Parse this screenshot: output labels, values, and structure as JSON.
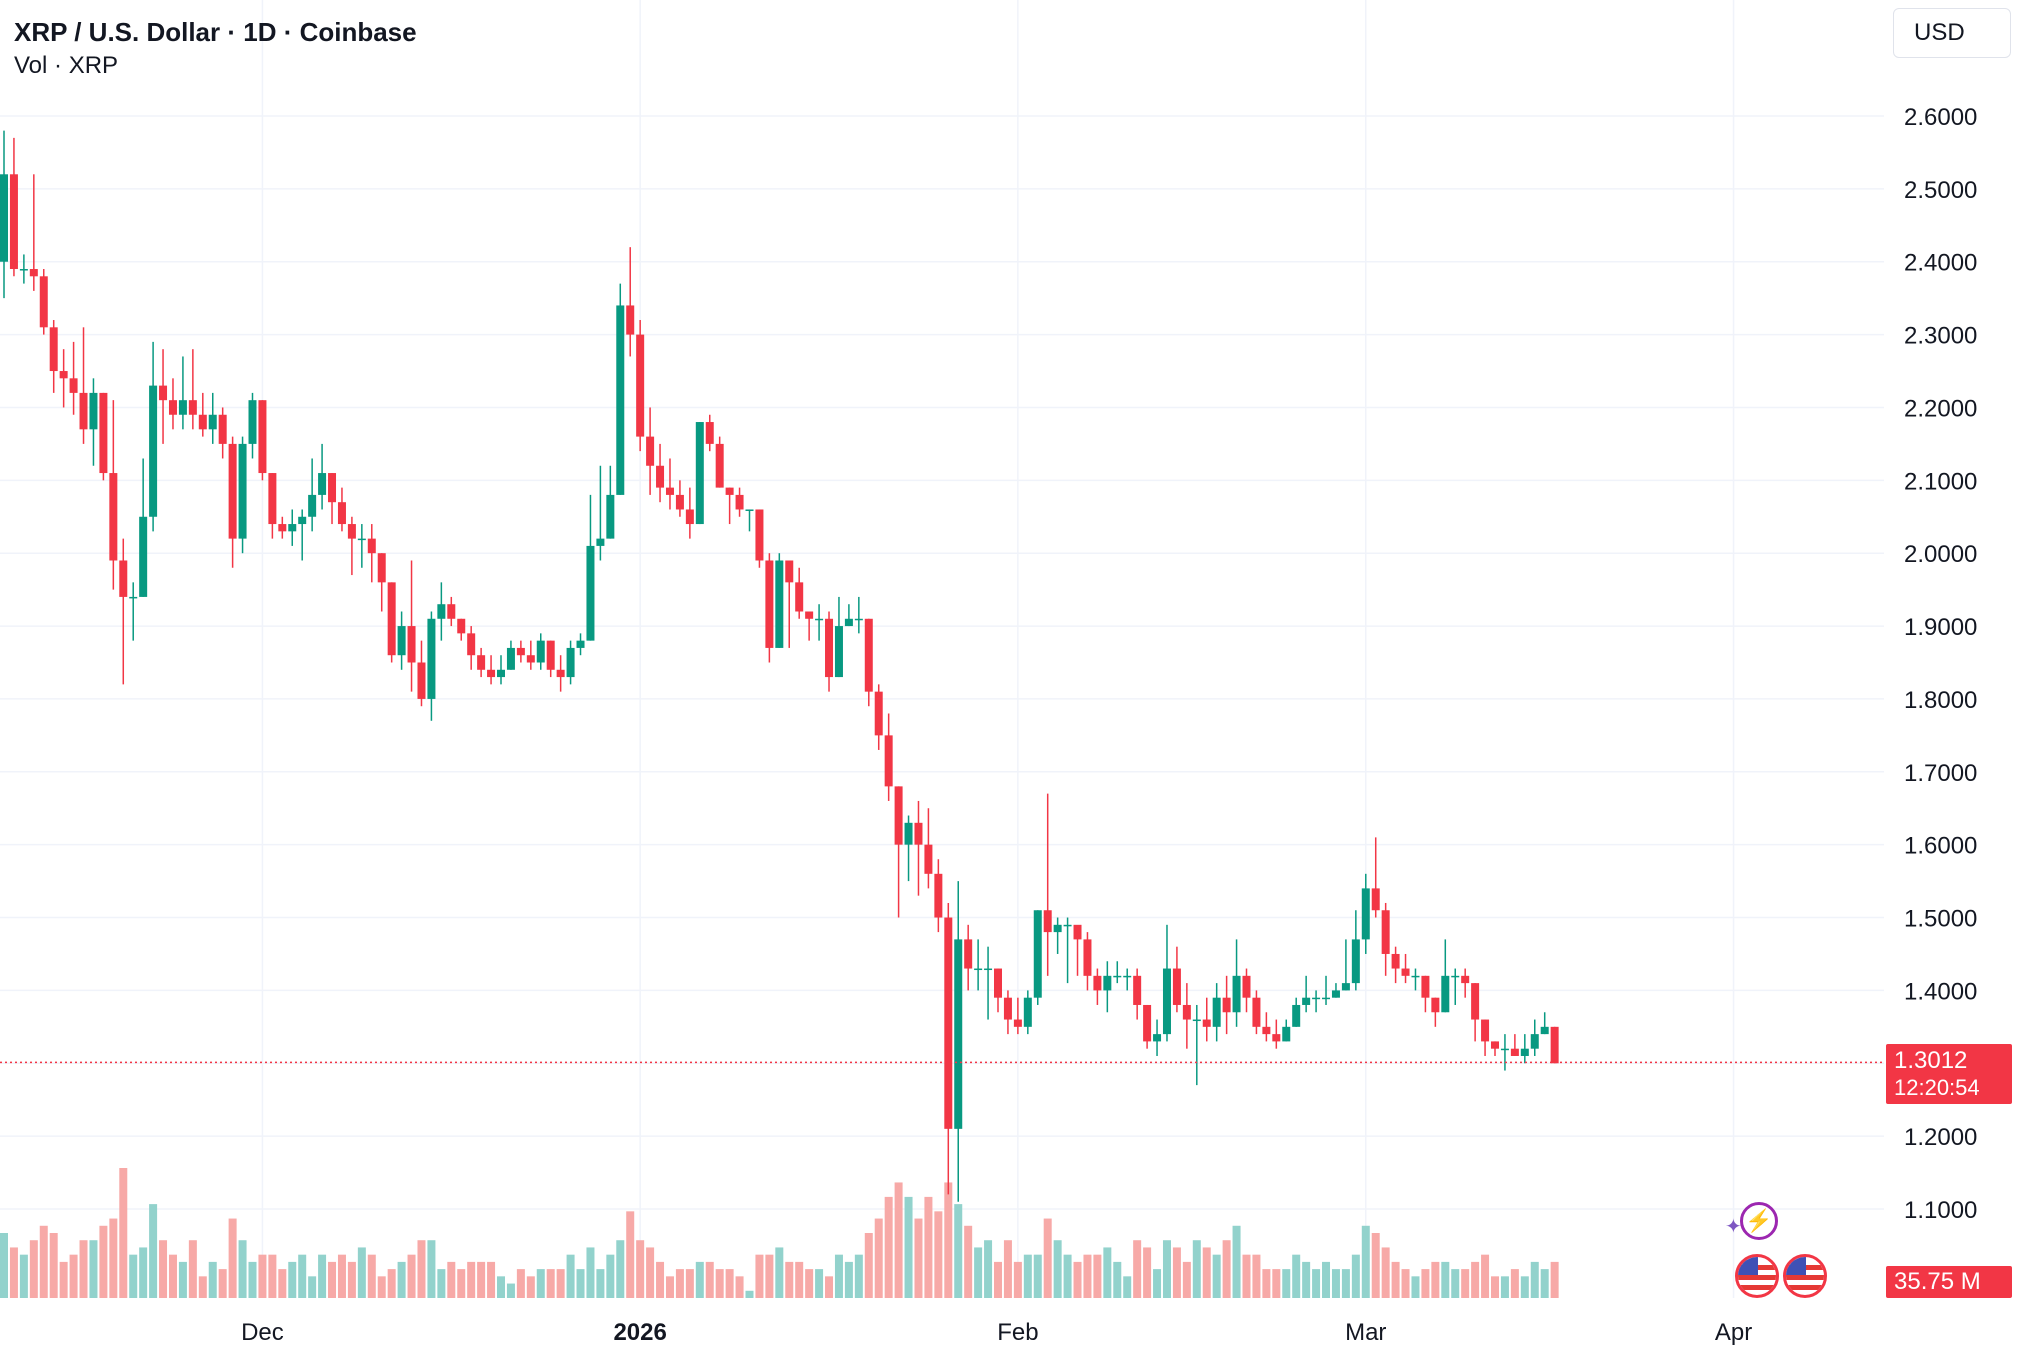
{
  "header": {
    "title": "XRP / U.S. Dollar · 1D · Coinbase",
    "volume_label": "Vol · XRP",
    "currency": "USD"
  },
  "price_label": {
    "price": "1.3012",
    "countdown": "12:20:54"
  },
  "volume_label": {
    "value": "35.75 M"
  },
  "colors": {
    "up": "#089981",
    "down": "#f23645",
    "up_volume": "#92d2cc",
    "down_volume": "#f7a9a7",
    "grid": "#f0f3fa"
  },
  "events": {
    "bolt_icon": "lightning-icon",
    "flag_icon": "us-flag-icon"
  },
  "chart_data": {
    "type": "candlestick",
    "x_ticks": [
      {
        "label": "Dec",
        "day": 26,
        "year": false
      },
      {
        "label": "2026",
        "day": 64,
        "year": true
      },
      {
        "label": "Feb",
        "day": 102,
        "year": false
      },
      {
        "label": "Mar",
        "day": 137,
        "year": false
      },
      {
        "label": "Apr",
        "day": 174,
        "year": false
      }
    ],
    "y_ticks": [
      "2.6000",
      "2.5000",
      "2.4000",
      "2.3000",
      "2.2000",
      "2.1000",
      "2.0000",
      "1.9000",
      "1.8000",
      "1.7000",
      "1.6000",
      "1.5000",
      "1.4000",
      "1.3000",
      "1.2000",
      "1.1000"
    ],
    "ylim": [
      1.05,
      2.72
    ],
    "current_price": 1.3012,
    "candles": [
      [
        2.4,
        2.52,
        2.58,
        2.35,
        0.9
      ],
      [
        2.52,
        2.39,
        2.57,
        2.38,
        0.7
      ],
      [
        2.39,
        2.39,
        2.41,
        2.37,
        0.6
      ],
      [
        2.39,
        2.38,
        2.52,
        2.36,
        0.8
      ],
      [
        2.38,
        2.31,
        2.39,
        2.3,
        1.0
      ],
      [
        2.31,
        2.25,
        2.32,
        2.22,
        0.9
      ],
      [
        2.25,
        2.24,
        2.28,
        2.2,
        0.5
      ],
      [
        2.24,
        2.22,
        2.29,
        2.19,
        0.6
      ],
      [
        2.22,
        2.17,
        2.31,
        2.15,
        0.8
      ],
      [
        2.17,
        2.22,
        2.24,
        2.12,
        0.8
      ],
      [
        2.22,
        2.11,
        2.22,
        2.1,
        1.0
      ],
      [
        2.11,
        1.99,
        2.21,
        1.95,
        1.1
      ],
      [
        1.99,
        1.94,
        2.02,
        1.82,
        1.8
      ],
      [
        1.94,
        1.94,
        1.96,
        1.88,
        0.6
      ],
      [
        1.94,
        2.05,
        2.13,
        1.94,
        0.7
      ],
      [
        2.05,
        2.23,
        2.29,
        2.03,
        1.3
      ],
      [
        2.23,
        2.21,
        2.28,
        2.15,
        0.8
      ],
      [
        2.21,
        2.19,
        2.24,
        2.17,
        0.6
      ],
      [
        2.19,
        2.21,
        2.27,
        2.17,
        0.5
      ],
      [
        2.21,
        2.19,
        2.28,
        2.17,
        0.8
      ],
      [
        2.19,
        2.17,
        2.22,
        2.16,
        0.3
      ],
      [
        2.17,
        2.19,
        2.22,
        2.15,
        0.5
      ],
      [
        2.19,
        2.15,
        2.2,
        2.13,
        0.4
      ],
      [
        2.15,
        2.02,
        2.16,
        1.98,
        1.1
      ],
      [
        2.02,
        2.15,
        2.16,
        2.0,
        0.8
      ],
      [
        2.15,
        2.21,
        2.22,
        2.13,
        0.5
      ],
      [
        2.21,
        2.11,
        2.21,
        2.1,
        0.6
      ],
      [
        2.11,
        2.04,
        2.11,
        2.02,
        0.6
      ],
      [
        2.04,
        2.03,
        2.05,
        2.02,
        0.4
      ],
      [
        2.03,
        2.04,
        2.06,
        2.01,
        0.5
      ],
      [
        2.04,
        2.05,
        2.06,
        1.99,
        0.6
      ],
      [
        2.05,
        2.08,
        2.13,
        2.03,
        0.3
      ],
      [
        2.08,
        2.11,
        2.15,
        2.06,
        0.6
      ],
      [
        2.11,
        2.07,
        2.11,
        2.04,
        0.5
      ],
      [
        2.07,
        2.04,
        2.09,
        2.03,
        0.6
      ],
      [
        2.04,
        2.02,
        2.05,
        1.97,
        0.5
      ],
      [
        2.02,
        2.02,
        2.04,
        1.98,
        0.7
      ],
      [
        2.02,
        2.0,
        2.04,
        1.96,
        0.6
      ],
      [
        2.0,
        1.96,
        2.0,
        1.92,
        0.3
      ],
      [
        1.96,
        1.86,
        1.96,
        1.85,
        0.4
      ],
      [
        1.86,
        1.9,
        1.92,
        1.84,
        0.5
      ],
      [
        1.9,
        1.85,
        1.99,
        1.81,
        0.6
      ],
      [
        1.85,
        1.8,
        1.88,
        1.79,
        0.8
      ],
      [
        1.8,
        1.91,
        1.92,
        1.77,
        0.8
      ],
      [
        1.91,
        1.93,
        1.96,
        1.88,
        0.4
      ],
      [
        1.93,
        1.91,
        1.94,
        1.9,
        0.5
      ],
      [
        1.91,
        1.89,
        1.91,
        1.88,
        0.4
      ],
      [
        1.89,
        1.86,
        1.9,
        1.84,
        0.5
      ],
      [
        1.86,
        1.84,
        1.87,
        1.83,
        0.5
      ],
      [
        1.84,
        1.83,
        1.86,
        1.82,
        0.5
      ],
      [
        1.83,
        1.84,
        1.86,
        1.82,
        0.3
      ],
      [
        1.84,
        1.87,
        1.88,
        1.84,
        0.2
      ],
      [
        1.87,
        1.86,
        1.88,
        1.85,
        0.4
      ],
      [
        1.86,
        1.85,
        1.88,
        1.84,
        0.3
      ],
      [
        1.85,
        1.88,
        1.89,
        1.84,
        0.4
      ],
      [
        1.88,
        1.84,
        1.88,
        1.83,
        0.4
      ],
      [
        1.84,
        1.83,
        1.86,
        1.81,
        0.4
      ],
      [
        1.83,
        1.87,
        1.88,
        1.82,
        0.6
      ],
      [
        1.87,
        1.88,
        1.89,
        1.86,
        0.4
      ],
      [
        1.88,
        2.01,
        2.08,
        1.88,
        0.7
      ],
      [
        2.01,
        2.02,
        2.12,
        1.99,
        0.4
      ],
      [
        2.02,
        2.08,
        2.12,
        2.02,
        0.6
      ],
      [
        2.08,
        2.34,
        2.37,
        2.08,
        0.8
      ],
      [
        2.34,
        2.3,
        2.42,
        2.27,
        1.2
      ],
      [
        2.3,
        2.16,
        2.32,
        2.14,
        0.8
      ],
      [
        2.16,
        2.12,
        2.2,
        2.08,
        0.7
      ],
      [
        2.12,
        2.09,
        2.15,
        2.07,
        0.5
      ],
      [
        2.09,
        2.08,
        2.13,
        2.06,
        0.3
      ],
      [
        2.08,
        2.06,
        2.1,
        2.05,
        0.4
      ],
      [
        2.06,
        2.04,
        2.09,
        2.02,
        0.4
      ],
      [
        2.04,
        2.18,
        2.18,
        2.04,
        0.5
      ],
      [
        2.18,
        2.15,
        2.19,
        2.14,
        0.5
      ],
      [
        2.15,
        2.09,
        2.16,
        2.09,
        0.4
      ],
      [
        2.09,
        2.08,
        2.09,
        2.04,
        0.4
      ],
      [
        2.08,
        2.06,
        2.09,
        2.05,
        0.3
      ],
      [
        2.06,
        2.06,
        2.06,
        2.03,
        0.1
      ],
      [
        2.06,
        1.99,
        2.06,
        1.98,
        0.6
      ],
      [
        1.99,
        1.87,
        2.0,
        1.85,
        0.6
      ],
      [
        1.87,
        1.99,
        2.0,
        1.87,
        0.7
      ],
      [
        1.99,
        1.96,
        1.98,
        1.87,
        0.5
      ],
      [
        1.96,
        1.92,
        1.98,
        1.91,
        0.5
      ],
      [
        1.92,
        1.91,
        1.92,
        1.88,
        0.4
      ],
      [
        1.91,
        1.91,
        1.93,
        1.88,
        0.4
      ],
      [
        1.91,
        1.83,
        1.92,
        1.81,
        0.3
      ],
      [
        1.83,
        1.9,
        1.94,
        1.83,
        0.6
      ],
      [
        1.9,
        1.91,
        1.93,
        1.9,
        0.5
      ],
      [
        1.91,
        1.91,
        1.94,
        1.89,
        0.6
      ],
      [
        1.91,
        1.81,
        1.91,
        1.79,
        0.9
      ],
      [
        1.81,
        1.75,
        1.82,
        1.73,
        1.1
      ],
      [
        1.75,
        1.68,
        1.78,
        1.66,
        1.4
      ],
      [
        1.68,
        1.6,
        1.68,
        1.5,
        1.6
      ],
      [
        1.6,
        1.63,
        1.64,
        1.55,
        1.4
      ],
      [
        1.63,
        1.6,
        1.66,
        1.53,
        1.1
      ],
      [
        1.6,
        1.56,
        1.65,
        1.54,
        1.4
      ],
      [
        1.56,
        1.5,
        1.58,
        1.48,
        1.2
      ],
      [
        1.5,
        1.21,
        1.52,
        1.12,
        1.6
      ],
      [
        1.21,
        1.47,
        1.55,
        1.11,
        1.3
      ],
      [
        1.47,
        1.43,
        1.49,
        1.4,
        1.0
      ],
      [
        1.43,
        1.43,
        1.47,
        1.4,
        0.7
      ],
      [
        1.43,
        1.43,
        1.46,
        1.36,
        0.8
      ],
      [
        1.43,
        1.39,
        1.43,
        1.37,
        0.5
      ],
      [
        1.39,
        1.36,
        1.4,
        1.34,
        0.8
      ],
      [
        1.36,
        1.35,
        1.39,
        1.34,
        0.5
      ],
      [
        1.35,
        1.39,
        1.4,
        1.34,
        0.6
      ],
      [
        1.39,
        1.51,
        1.51,
        1.38,
        0.6
      ],
      [
        1.51,
        1.48,
        1.67,
        1.42,
        1.1
      ],
      [
        1.48,
        1.49,
        1.5,
        1.45,
        0.8
      ],
      [
        1.49,
        1.49,
        1.5,
        1.41,
        0.6
      ],
      [
        1.49,
        1.47,
        1.48,
        1.42,
        0.5
      ],
      [
        1.47,
        1.42,
        1.48,
        1.4,
        0.6
      ],
      [
        1.42,
        1.4,
        1.43,
        1.38,
        0.6
      ],
      [
        1.4,
        1.42,
        1.44,
        1.37,
        0.7
      ],
      [
        1.42,
        1.42,
        1.44,
        1.41,
        0.5
      ],
      [
        1.42,
        1.42,
        1.43,
        1.4,
        0.3
      ],
      [
        1.42,
        1.38,
        1.43,
        1.36,
        0.8
      ],
      [
        1.38,
        1.33,
        1.38,
        1.32,
        0.7
      ],
      [
        1.33,
        1.34,
        1.36,
        1.31,
        0.4
      ],
      [
        1.34,
        1.43,
        1.49,
        1.33,
        0.8
      ],
      [
        1.43,
        1.38,
        1.46,
        1.37,
        0.7
      ],
      [
        1.38,
        1.36,
        1.41,
        1.32,
        0.5
      ],
      [
        1.36,
        1.36,
        1.38,
        1.27,
        0.8
      ],
      [
        1.36,
        1.35,
        1.39,
        1.33,
        0.7
      ],
      [
        1.35,
        1.39,
        1.41,
        1.33,
        0.6
      ],
      [
        1.39,
        1.37,
        1.42,
        1.34,
        0.8
      ],
      [
        1.37,
        1.42,
        1.47,
        1.35,
        1.0
      ],
      [
        1.42,
        1.39,
        1.43,
        1.37,
        0.6
      ],
      [
        1.39,
        1.35,
        1.4,
        1.34,
        0.6
      ],
      [
        1.35,
        1.34,
        1.37,
        1.33,
        0.4
      ],
      [
        1.34,
        1.33,
        1.36,
        1.32,
        0.4
      ],
      [
        1.33,
        1.35,
        1.36,
        1.33,
        0.4
      ],
      [
        1.35,
        1.38,
        1.39,
        1.35,
        0.6
      ],
      [
        1.38,
        1.39,
        1.42,
        1.37,
        0.5
      ],
      [
        1.39,
        1.39,
        1.4,
        1.37,
        0.4
      ],
      [
        1.39,
        1.39,
        1.42,
        1.38,
        0.5
      ],
      [
        1.39,
        1.4,
        1.41,
        1.39,
        0.4
      ],
      [
        1.4,
        1.41,
        1.47,
        1.4,
        0.4
      ],
      [
        1.41,
        1.47,
        1.51,
        1.4,
        0.6
      ],
      [
        1.47,
        1.54,
        1.56,
        1.45,
        1.0
      ],
      [
        1.54,
        1.51,
        1.61,
        1.5,
        0.9
      ],
      [
        1.51,
        1.45,
        1.52,
        1.42,
        0.7
      ],
      [
        1.45,
        1.43,
        1.46,
        1.41,
        0.5
      ],
      [
        1.43,
        1.42,
        1.45,
        1.41,
        0.4
      ],
      [
        1.42,
        1.42,
        1.43,
        1.4,
        0.3
      ],
      [
        1.42,
        1.39,
        1.42,
        1.37,
        0.4
      ],
      [
        1.39,
        1.37,
        1.39,
        1.35,
        0.5
      ],
      [
        1.37,
        1.42,
        1.47,
        1.37,
        0.5
      ],
      [
        1.42,
        1.42,
        1.43,
        1.38,
        0.4
      ],
      [
        1.42,
        1.41,
        1.43,
        1.39,
        0.4
      ],
      [
        1.41,
        1.36,
        1.41,
        1.33,
        0.5
      ],
      [
        1.36,
        1.33,
        1.36,
        1.31,
        0.6
      ],
      [
        1.33,
        1.32,
        1.33,
        1.31,
        0.3
      ],
      [
        1.32,
        1.32,
        1.34,
        1.29,
        0.3
      ],
      [
        1.32,
        1.31,
        1.34,
        1.31,
        0.4
      ],
      [
        1.31,
        1.32,
        1.34,
        1.3,
        0.3
      ],
      [
        1.32,
        1.34,
        1.36,
        1.31,
        0.5
      ],
      [
        1.34,
        1.35,
        1.37,
        1.34,
        0.4
      ],
      [
        1.35,
        1.3,
        1.35,
        1.3,
        0.5
      ]
    ]
  }
}
